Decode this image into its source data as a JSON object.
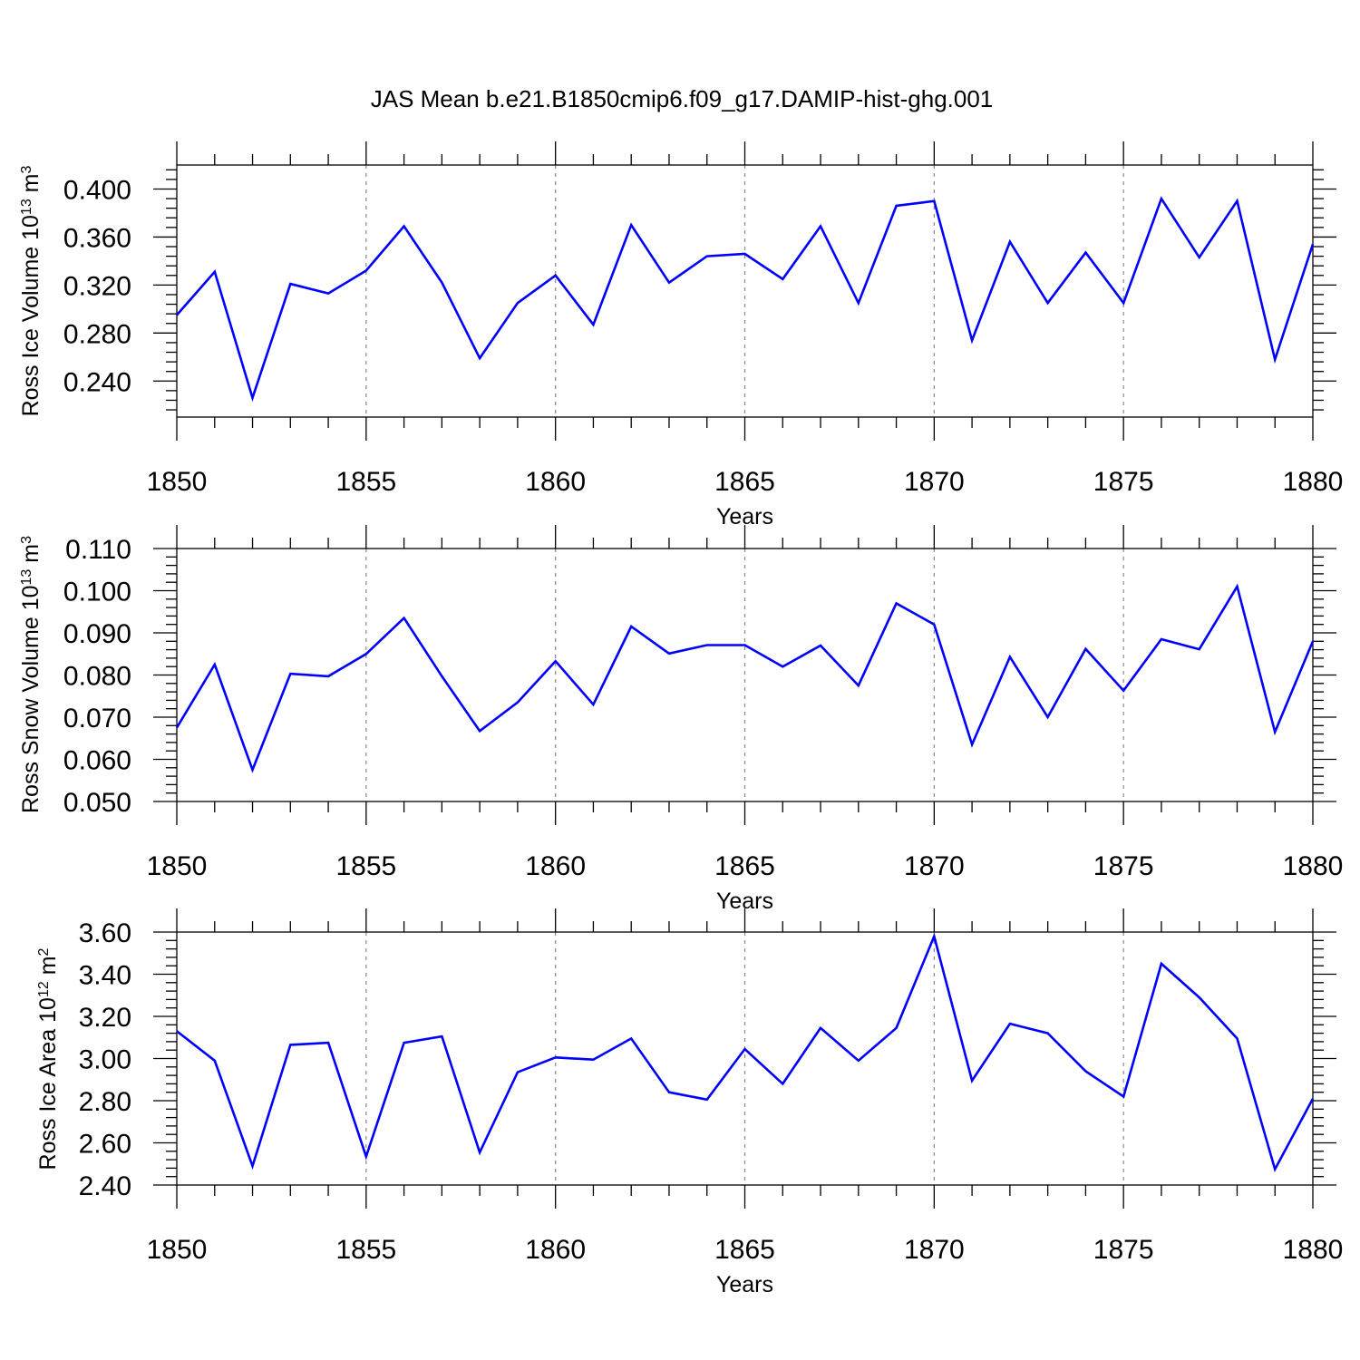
{
  "title": "JAS Mean b.e21.B1850cmip6.f09_g17.DAMIP-hist-ghg.001",
  "chart_data": [
    {
      "type": "line",
      "ylabel": "Ross Ice Volume 10",
      "ylabel_exp": "13",
      "ylabel_unit": "m",
      "ylabel_unit_exp": "3",
      "xlabel": "Years",
      "xlim": [
        1850,
        1880
      ],
      "ylim": [
        0.21,
        0.42
      ],
      "xticks": [
        1850,
        1855,
        1860,
        1865,
        1870,
        1875,
        1880
      ],
      "xtick_labels": [
        "1850",
        "1855",
        "1860",
        "1865",
        "1870",
        "1875",
        "1880"
      ],
      "yticks": [
        0.24,
        0.28,
        0.32,
        0.36,
        0.4
      ],
      "ytick_labels": [
        "0.240",
        "0.280",
        "0.320",
        "0.360",
        "0.400"
      ],
      "gridlines_x": [
        1855,
        1860,
        1865,
        1870,
        1875
      ],
      "line_color": "#0000ff",
      "series": [
        {
          "name": "Ross Ice Volume",
          "x": [
            1850,
            1851,
            1852,
            1853,
            1854,
            1855,
            1856,
            1857,
            1858,
            1859,
            1860,
            1861,
            1862,
            1863,
            1864,
            1865,
            1866,
            1867,
            1868,
            1869,
            1870,
            1871,
            1872,
            1873,
            1874,
            1875,
            1876,
            1877,
            1878,
            1879,
            1880
          ],
          "values": [
            0.295,
            0.331,
            0.226,
            0.321,
            0.313,
            0.332,
            0.369,
            0.322,
            0.259,
            0.305,
            0.328,
            0.287,
            0.37,
            0.322,
            0.344,
            0.346,
            0.325,
            0.369,
            0.305,
            0.386,
            0.39,
            0.274,
            0.356,
            0.305,
            0.347,
            0.305,
            0.392,
            0.343,
            0.39,
            0.258,
            0.354
          ]
        }
      ]
    },
    {
      "type": "line",
      "ylabel": "Ross Snow Volume 10",
      "ylabel_exp": "13",
      "ylabel_unit": "m",
      "ylabel_unit_exp": "3",
      "xlabel": "Years",
      "xlim": [
        1850,
        1880
      ],
      "ylim": [
        0.05,
        0.11
      ],
      "xticks": [
        1850,
        1855,
        1860,
        1865,
        1870,
        1875,
        1880
      ],
      "xtick_labels": [
        "1850",
        "1855",
        "1860",
        "1865",
        "1870",
        "1875",
        "1880"
      ],
      "yticks": [
        0.05,
        0.06,
        0.07,
        0.08,
        0.09,
        0.1,
        0.11
      ],
      "ytick_labels": [
        "0.050",
        "0.060",
        "0.070",
        "0.080",
        "0.090",
        "0.100",
        "0.110"
      ],
      "gridlines_x": [
        1855,
        1860,
        1865,
        1870,
        1875
      ],
      "line_color": "#0000ff",
      "series": [
        {
          "name": "Ross Snow Volume",
          "x": [
            1850,
            1851,
            1852,
            1853,
            1854,
            1855,
            1856,
            1857,
            1858,
            1859,
            1860,
            1861,
            1862,
            1863,
            1864,
            1865,
            1866,
            1867,
            1868,
            1869,
            1870,
            1871,
            1872,
            1873,
            1874,
            1875,
            1876,
            1877,
            1878,
            1879,
            1880
          ],
          "values": [
            0.0675,
            0.0825,
            0.0575,
            0.0803,
            0.0797,
            0.085,
            0.0935,
            0.0797,
            0.0667,
            0.0735,
            0.0833,
            0.073,
            0.0915,
            0.0851,
            0.0871,
            0.0871,
            0.082,
            0.087,
            0.0775,
            0.097,
            0.092,
            0.0635,
            0.0843,
            0.07,
            0.0862,
            0.0763,
            0.0885,
            0.0861,
            0.101,
            0.0665,
            0.088
          ]
        }
      ]
    },
    {
      "type": "line",
      "ylabel": "Ross Ice Area 10",
      "ylabel_exp": "12",
      "ylabel_unit": "m",
      "ylabel_unit_exp": "2",
      "xlabel": "Years",
      "xlim": [
        1850,
        1880
      ],
      "ylim": [
        2.4,
        3.6
      ],
      "xticks": [
        1850,
        1855,
        1860,
        1865,
        1870,
        1875,
        1880
      ],
      "xtick_labels": [
        "1850",
        "1855",
        "1860",
        "1865",
        "1870",
        "1875",
        "1880"
      ],
      "yticks": [
        2.4,
        2.6,
        2.8,
        3.0,
        3.2,
        3.4,
        3.6
      ],
      "ytick_labels": [
        "2.40",
        "2.60",
        "2.80",
        "3.00",
        "3.20",
        "3.40",
        "3.60"
      ],
      "gridlines_x": [
        1855,
        1860,
        1865,
        1870,
        1875
      ],
      "line_color": "#0000ff",
      "series": [
        {
          "name": "Ross Ice Area",
          "x": [
            1850,
            1851,
            1852,
            1853,
            1854,
            1855,
            1856,
            1857,
            1858,
            1859,
            1860,
            1861,
            1862,
            1863,
            1864,
            1865,
            1866,
            1867,
            1868,
            1869,
            1870,
            1871,
            1872,
            1873,
            1874,
            1875,
            1876,
            1877,
            1878,
            1879,
            1880
          ],
          "values": [
            3.13,
            2.99,
            2.49,
            3.065,
            3.075,
            2.535,
            3.075,
            3.105,
            2.555,
            2.935,
            3.005,
            2.995,
            3.095,
            2.84,
            2.805,
            3.045,
            2.88,
            3.145,
            2.99,
            3.145,
            3.58,
            2.895,
            3.165,
            3.12,
            2.94,
            2.82,
            3.45,
            3.29,
            3.095,
            2.475,
            2.81
          ]
        }
      ]
    }
  ]
}
